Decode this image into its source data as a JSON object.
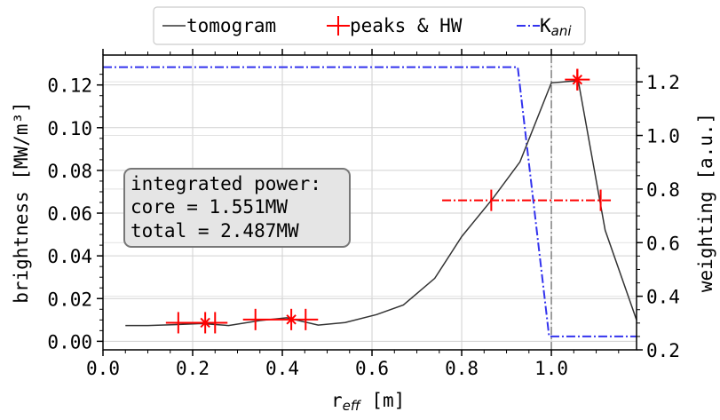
{
  "chart_data": {
    "type": "line",
    "xlabel": "r",
    "xlabel_sub": "eff",
    "xlabel_unit": " [m]",
    "ylabel": "brightness [MW/m³]",
    "y2label": "weighting [a.u.]",
    "xlim": [
      0.0,
      1.19
    ],
    "ylim": [
      -0.004,
      0.134
    ],
    "y2lim": [
      0.2,
      1.3
    ],
    "xticks": [
      "0.0",
      "0.2",
      "0.4",
      "0.6",
      "0.8",
      "1.0"
    ],
    "yticks": [
      "0.00",
      "0.02",
      "0.04",
      "0.06",
      "0.08",
      "0.10",
      "0.12"
    ],
    "y2ticks": [
      "0.2",
      "0.4",
      "0.6",
      "0.8",
      "1.0",
      "1.2"
    ],
    "grid": true,
    "legend_position": "top-center",
    "legend": {
      "tomogram": "tomogram",
      "peaks": "peaks & HW",
      "kani_main": "K",
      "kani_sub": "ani"
    },
    "colors": {
      "tomogram": "#333333",
      "peaks": "#ff0000",
      "kani": "#3333ee",
      "separatrix": "#808080"
    },
    "tomogram": {
      "x": [
        0.05,
        0.1,
        0.16,
        0.22,
        0.28,
        0.35,
        0.41,
        0.48,
        0.54,
        0.61,
        0.67,
        0.74,
        0.8,
        0.87,
        0.93,
        1.0,
        1.06,
        1.12,
        1.19
      ],
      "y": [
        0.0074,
        0.0074,
        0.0078,
        0.0083,
        0.0074,
        0.0097,
        0.011,
        0.0076,
        0.0088,
        0.0125,
        0.017,
        0.0295,
        0.049,
        0.067,
        0.084,
        0.121,
        0.122,
        0.052,
        0.01
      ]
    },
    "peaks": [
      {
        "x": 0.228,
        "y": 0.0087,
        "xerr_low": 0.168,
        "xerr_high": 0.25,
        "yerr": 0.005
      },
      {
        "x": 0.42,
        "y": 0.0102,
        "xerr_low": 0.34,
        "xerr_high": 0.452,
        "yerr": 0.005
      },
      {
        "x": 1.058,
        "y": 0.1225,
        "xerr_low": 1.058,
        "xerr_high": 1.058,
        "yerr": 0.005
      }
    ],
    "edge_peak": {
      "x": 0.866,
      "y": 0.066,
      "x_low": 0.8,
      "x_high": 1.11,
      "yerr": 0.005
    },
    "kani": {
      "x": [
        0.0,
        0.925,
        0.995,
        1.19
      ],
      "y2": [
        1.255,
        1.255,
        0.25,
        0.25
      ]
    },
    "separatrix_x": 1.0,
    "annotation": [
      "integrated power:",
      "core = 1.551MW",
      "total = 2.487MW"
    ]
  }
}
